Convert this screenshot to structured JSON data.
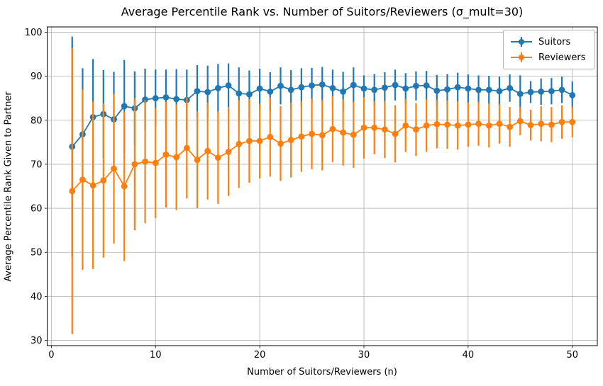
{
  "chart_data": {
    "type": "line",
    "title": "Average Percentile Rank vs. Number of Suitors/Reviewers (σ_mult=30)",
    "xlabel": "Number of Suitors/Reviewers (n)",
    "ylabel": "Average Percentile Rank Given to Partner",
    "x": [
      2,
      3,
      4,
      5,
      6,
      7,
      8,
      9,
      10,
      11,
      12,
      13,
      14,
      15,
      16,
      17,
      18,
      19,
      20,
      21,
      22,
      23,
      24,
      25,
      26,
      27,
      28,
      29,
      30,
      31,
      32,
      33,
      34,
      35,
      36,
      37,
      38,
      39,
      40,
      41,
      42,
      43,
      44,
      45,
      46,
      47,
      48,
      49,
      50
    ],
    "series": [
      {
        "name": "Suitors",
        "color": "#1f77b4",
        "values": [
          74.0,
          76.8,
          80.7,
          81.4,
          80.2,
          83.2,
          82.7,
          84.7,
          85.0,
          85.2,
          84.8,
          84.6,
          86.6,
          86.4,
          87.3,
          87.9,
          86.1,
          85.9,
          87.2,
          86.5,
          87.8,
          86.9,
          87.5,
          87.9,
          88.1,
          87.3,
          86.5,
          88.0,
          87.2,
          86.9,
          87.4,
          88.0,
          87.2,
          87.8,
          87.9,
          86.7,
          87.0,
          87.5,
          87.2,
          86.9,
          86.9,
          86.6,
          87.3,
          86.0,
          86.4,
          86.5,
          86.6,
          86.9,
          85.7
        ],
        "yerr": [
          25.0,
          15.0,
          13.2,
          10.0,
          10.8,
          10.5,
          8.4,
          7.0,
          6.5,
          6.3,
          6.8,
          6.9,
          5.9,
          6.0,
          5.5,
          5.0,
          5.9,
          5.4,
          4.5,
          4.4,
          4.2,
          4.5,
          4.3,
          4.0,
          4.0,
          4.2,
          4.5,
          4.0,
          3.0,
          3.6,
          3.5,
          3.5,
          3.5,
          3.3,
          3.3,
          3.6,
          3.5,
          3.3,
          3.2,
          3.3,
          3.2,
          3.3,
          3.1,
          4.2,
          2.5,
          3.0,
          3.0,
          3.0,
          3.1
        ]
      },
      {
        "name": "Reviewers",
        "color": "#ff7f0e",
        "values": [
          63.9,
          66.5,
          65.2,
          66.3,
          69.0,
          65.0,
          70.0,
          70.6,
          70.3,
          72.2,
          71.6,
          73.7,
          71.0,
          73.0,
          71.5,
          72.8,
          74.6,
          75.3,
          75.3,
          76.2,
          74.7,
          75.5,
          76.3,
          76.9,
          76.6,
          78.0,
          77.2,
          76.7,
          78.3,
          78.3,
          77.9,
          76.9,
          78.8,
          77.9,
          78.8,
          79.1,
          79.0,
          78.8,
          79.0,
          79.2,
          78.8,
          79.2,
          78.5,
          79.8,
          78.9,
          79.2,
          79.0,
          79.6,
          79.6
        ],
        "yerr": [
          32.5,
          20.5,
          19.0,
          17.5,
          17.0,
          17.0,
          15.0,
          14.0,
          12.5,
          12.0,
          12.0,
          11.5,
          11.0,
          11.0,
          10.5,
          10.0,
          10.0,
          9.5,
          8.5,
          9.0,
          8.5,
          8.5,
          8.0,
          8.0,
          8.0,
          7.5,
          7.5,
          7.5,
          7.0,
          6.0,
          6.5,
          6.5,
          6.0,
          6.0,
          6.0,
          5.5,
          5.5,
          5.5,
          5.0,
          5.0,
          5.0,
          4.5,
          4.5,
          3.2,
          3.5,
          4.0,
          4.0,
          3.8,
          3.5
        ]
      }
    ],
    "xticks": [
      0,
      10,
      20,
      30,
      40,
      50
    ],
    "yticks": [
      30,
      40,
      50,
      60,
      70,
      80,
      90,
      100
    ],
    "xlim": [
      -0.4,
      52.4
    ],
    "ylim": [
      28.8,
      101.2
    ],
    "grid": true,
    "grid_color": "#b0b0b0",
    "axis_color": "#000000",
    "legend_position": "upper right",
    "marker": "o",
    "errorbar": true
  }
}
